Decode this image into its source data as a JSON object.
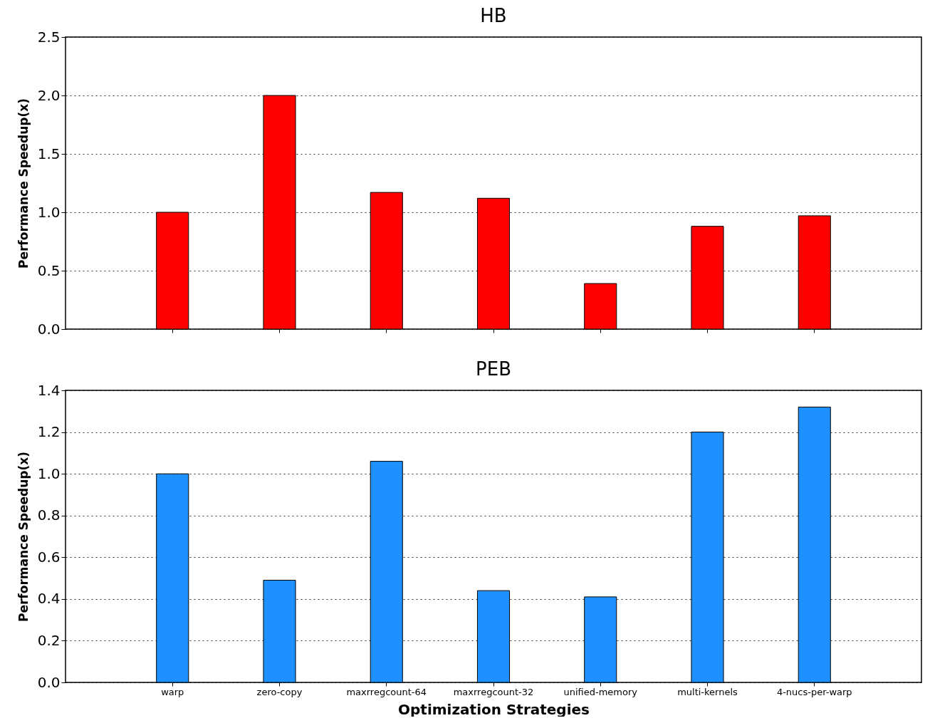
{
  "chart_data": [
    {
      "type": "bar",
      "title": "HB",
      "ylabel": "Performance Speedup(x)",
      "categories": [
        null,
        null,
        null,
        null,
        null,
        null,
        null
      ],
      "values": [
        1.0,
        2.0,
        1.17,
        1.12,
        0.39,
        0.88,
        0.97
      ],
      "color": "#ff0000",
      "ylim": [
        0,
        2.5
      ],
      "yticks": [
        {
          "value": 0,
          "label": "0.0"
        },
        {
          "value": 0.5,
          "label": "0.5"
        },
        {
          "value": 1,
          "label": "1.0"
        },
        {
          "value": 1.5,
          "label": "1.5"
        },
        {
          "value": 2,
          "label": "2.0"
        },
        {
          "value": 2.5,
          "label": "2.5"
        }
      ],
      "grid": "y",
      "tick_labels": "y"
    },
    {
      "type": "bar",
      "title": "PEB",
      "xlabel": "Optimization Strategies",
      "ylabel": "Performance Speedup(x)",
      "categories": [
        "warp",
        "zero-copy",
        "maxrregcount-64",
        "maxrregcount-32",
        "unified-memory",
        "multi-kernels",
        "4-nucs-per-warp"
      ],
      "values": [
        1.0,
        0.49,
        1.06,
        0.44,
        0.41,
        1.2,
        1.32
      ],
      "color": "#1e90ff",
      "ylim": [
        0,
        1.4
      ],
      "yticks": [
        {
          "value": 0,
          "label": "0.0"
        },
        {
          "value": 0.2,
          "label": "0.2"
        },
        {
          "value": 0.4,
          "label": "0.4"
        },
        {
          "value": 0.6,
          "label": "0.6"
        },
        {
          "value": 0.8,
          "label": "0.8"
        },
        {
          "value": 1,
          "label": "1.0"
        },
        {
          "value": 1.2,
          "label": "1.2"
        },
        {
          "value": 1.4,
          "label": "1.4"
        }
      ],
      "grid": "y"
    }
  ]
}
